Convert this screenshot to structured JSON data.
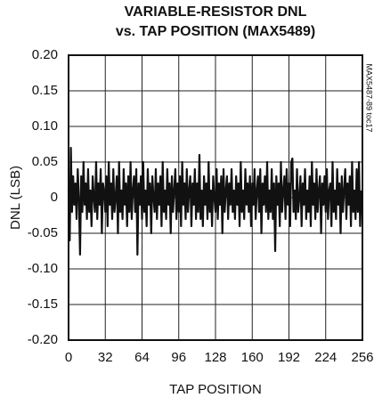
{
  "chart_data": {
    "type": "line",
    "title": "VARIABLE-RESISTOR DNL",
    "subtitle": "vs. TAP POSITION (MAX5489)",
    "xlabel": "TAP POSITION",
    "ylabel": "DNL (LSB)",
    "annotation": "MAX5487-89 toc17",
    "color": "#111111",
    "grid": true,
    "xlim": [
      0,
      256
    ],
    "xticks": [
      0,
      32,
      64,
      96,
      128,
      160,
      192,
      224,
      256
    ],
    "ylim": [
      -0.2,
      0.2
    ],
    "yticks": [
      {
        "value": 0.2,
        "label": "0.20"
      },
      0.15,
      {
        "value": 0.1,
        "label": "0.10"
      },
      0.05,
      0,
      -0.05,
      {
        "value": -0.1,
        "label": "-0.10"
      },
      -0.15,
      {
        "value": -0.2,
        "label": "-0.20"
      }
    ],
    "x": [
      0,
      1,
      2,
      3,
      4,
      5,
      6,
      7,
      8,
      9,
      10,
      11,
      12,
      13,
      14,
      15,
      16,
      17,
      18,
      19,
      20,
      21,
      22,
      23,
      24,
      25,
      26,
      27,
      28,
      29,
      30,
      31,
      32,
      33,
      34,
      35,
      36,
      37,
      38,
      39,
      40,
      41,
      42,
      43,
      44,
      45,
      46,
      47,
      48,
      49,
      50,
      51,
      52,
      53,
      54,
      55,
      56,
      57,
      58,
      59,
      60,
      61,
      62,
      63,
      64,
      65,
      66,
      67,
      68,
      69,
      70,
      71,
      72,
      73,
      74,
      75,
      76,
      77,
      78,
      79,
      80,
      81,
      82,
      83,
      84,
      85,
      86,
      87,
      88,
      89,
      90,
      91,
      92,
      93,
      94,
      95,
      96,
      97,
      98,
      99,
      100,
      101,
      102,
      103,
      104,
      105,
      106,
      107,
      108,
      109,
      110,
      111,
      112,
      113,
      114,
      115,
      116,
      117,
      118,
      119,
      120,
      121,
      122,
      123,
      124,
      125,
      126,
      127,
      128,
      129,
      130,
      131,
      132,
      133,
      134,
      135,
      136,
      137,
      138,
      139,
      140,
      141,
      142,
      143,
      144,
      145,
      146,
      147,
      148,
      149,
      150,
      151,
      152,
      153,
      154,
      155,
      156,
      157,
      158,
      159,
      160,
      161,
      162,
      163,
      164,
      165,
      166,
      167,
      168,
      169,
      170,
      171,
      172,
      173,
      174,
      175,
      176,
      177,
      178,
      179,
      180,
      181,
      182,
      183,
      184,
      185,
      186,
      187,
      188,
      189,
      190,
      191,
      192,
      193,
      194,
      195,
      196,
      197,
      198,
      199,
      200,
      201,
      202,
      203,
      204,
      205,
      206,
      207,
      208,
      209,
      210,
      211,
      212,
      213,
      214,
      215,
      216,
      217,
      218,
      219,
      220,
      221,
      222,
      223,
      224,
      225,
      226,
      227,
      228,
      229,
      230,
      231,
      232,
      233,
      234,
      235,
      236,
      237,
      238,
      239,
      240,
      241,
      242,
      243,
      244,
      245,
      246,
      247,
      248,
      249,
      250,
      251,
      252,
      253,
      254,
      255
    ],
    "values": [
      0.01,
      -0.06,
      0.07,
      -0.02,
      0.03,
      -0.01,
      0.02,
      -0.03,
      0.04,
      0.0,
      -0.08,
      0.03,
      -0.02,
      0.05,
      -0.01,
      0.02,
      -0.03,
      0.04,
      -0.02,
      0.01,
      -0.04,
      0.03,
      0.0,
      -0.02,
      0.05,
      -0.03,
      0.02,
      -0.01,
      0.04,
      -0.05,
      0.02,
      0.01,
      -0.02,
      0.03,
      -0.04,
      0.05,
      -0.01,
      0.02,
      -0.03,
      0.04,
      -0.02,
      0.0,
      0.03,
      -0.05,
      0.05,
      -0.02,
      0.01,
      -0.03,
      0.04,
      -0.01,
      0.02,
      -0.04,
      0.03,
      -0.02,
      0.05,
      -0.03,
      0.01,
      0.03,
      -0.02,
      0.04,
      -0.08,
      0.02,
      -0.01,
      0.03,
      -0.03,
      0.05,
      -0.02,
      0.01,
      -0.04,
      0.04,
      -0.01,
      0.02,
      -0.05,
      0.03,
      0.0,
      -0.02,
      0.04,
      -0.03,
      0.02,
      -0.01,
      0.03,
      -0.04,
      0.05,
      -0.02,
      0.01,
      -0.03,
      0.04,
      -0.01,
      0.02,
      -0.05,
      0.03,
      -0.02,
      0.01,
      0.04,
      -0.03,
      0.02,
      -0.02,
      0.03,
      -0.04,
      0.05,
      -0.01,
      0.02,
      -0.03,
      0.04,
      -0.02,
      0.01,
      0.03,
      -0.04,
      0.02,
      -0.01,
      0.04,
      -0.03,
      0.02,
      -0.02,
      0.06,
      -0.03,
      0.01,
      -0.04,
      0.03,
      -0.01,
      0.02,
      -0.03,
      0.05,
      -0.02,
      0.01,
      -0.04,
      0.03,
      0.0,
      -0.02,
      0.04,
      -0.03,
      0.02,
      -0.01,
      0.03,
      -0.05,
      0.04,
      -0.02,
      0.01,
      0.03,
      -0.03,
      0.02,
      -0.01,
      0.04,
      -0.02,
      0.01,
      -0.03,
      0.03,
      -0.01,
      0.02,
      -0.04,
      0.05,
      -0.02,
      0.01,
      -0.03,
      0.04,
      -0.01,
      0.02,
      -0.02,
      0.03,
      -0.04,
      0.02,
      -0.01,
      0.04,
      -0.03,
      0.01,
      0.03,
      -0.02,
      0.04,
      -0.05,
      0.02,
      -0.01,
      0.03,
      -0.02,
      0.05,
      -0.03,
      0.01,
      -0.02,
      0.04,
      -0.03,
      0.02,
      -0.075,
      0.03,
      -0.01,
      0.02,
      -0.04,
      0.05,
      -0.02,
      0.01,
      0.03,
      -0.03,
      0.04,
      -0.01,
      0.02,
      -0.04,
      0.05,
      0.055,
      -0.02,
      0.01,
      -0.03,
      0.04,
      -0.02,
      0.0,
      0.03,
      -0.04,
      0.02,
      -0.01,
      0.04,
      -0.03,
      0.01,
      -0.02,
      0.03,
      -0.04,
      0.05,
      -0.01,
      0.02,
      -0.03,
      0.04,
      -0.02,
      0.01,
      0.03,
      -0.05,
      0.02,
      -0.01,
      0.03,
      -0.02,
      0.04,
      -0.03,
      0.01,
      0.02,
      -0.04,
      0.05,
      -0.02,
      0.01,
      -0.03,
      0.04,
      -0.01,
      0.02,
      -0.05,
      0.03,
      -0.02,
      0.01,
      0.04,
      -0.03,
      0.02,
      -0.01,
      0.03,
      -0.04,
      0.05,
      -0.02,
      0.01,
      -0.03,
      0.04,
      -0.02,
      0.05,
      -0.04,
      0.01
    ]
  }
}
